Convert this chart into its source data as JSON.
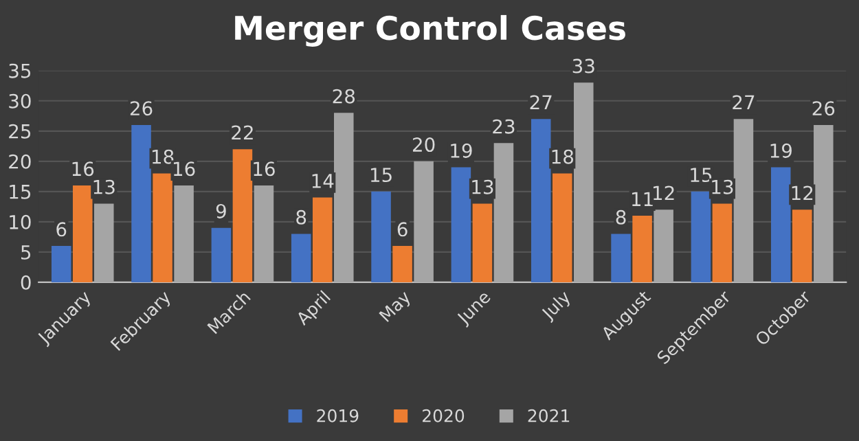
{
  "chart_data": {
    "type": "bar",
    "title": "Merger Control Cases",
    "categories": [
      "January",
      "February",
      "March",
      "April",
      "May",
      "June",
      "July",
      "August",
      "September",
      "October"
    ],
    "series": [
      {
        "name": "2019",
        "color": "#4472c4",
        "values": [
          6,
          26,
          9,
          8,
          15,
          19,
          27,
          8,
          15,
          19
        ]
      },
      {
        "name": "2020",
        "color": "#ed7d31",
        "values": [
          16,
          18,
          22,
          14,
          6,
          13,
          18,
          11,
          13,
          12
        ]
      },
      {
        "name": "2021",
        "color": "#a5a5a5",
        "values": [
          13,
          16,
          16,
          28,
          20,
          23,
          33,
          12,
          27,
          26
        ]
      }
    ],
    "ylim": [
      0,
      35
    ],
    "yticks": [
      0,
      5,
      10,
      15,
      20,
      25,
      30,
      35
    ],
    "grid": "y",
    "legend": "bottom",
    "data_labels": true
  }
}
